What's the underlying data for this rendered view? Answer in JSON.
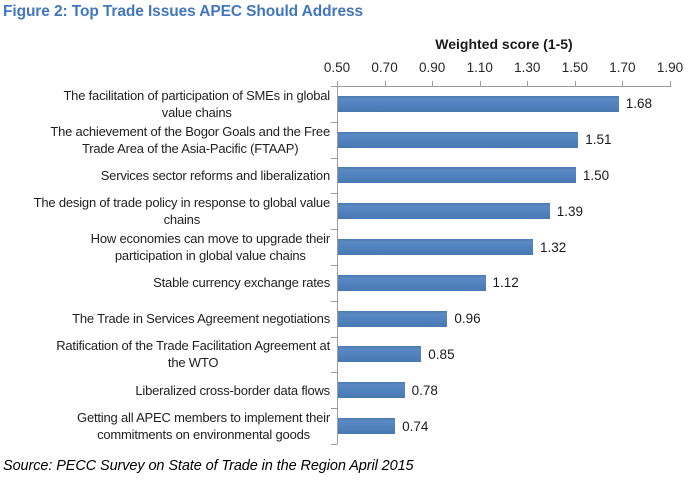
{
  "title": "Figure 2: Top Trade Issues APEC Should Address",
  "source": "Source: PECC Survey on State of Trade in the Region April 2015",
  "colors": {
    "title_blue": "#4277be",
    "bar_blue": "#4f81bd",
    "axis_gray": "#9b9b9b",
    "text": "#1a1a1a"
  },
  "chart_data": {
    "type": "bar",
    "orientation": "horizontal",
    "axis_title": "Weighted score (1-5)",
    "xlabel": "Weighted score (1-5)",
    "ylabel": "",
    "xlim": [
      0.5,
      1.9
    ],
    "xtick_labels": [
      "0.50",
      "0.70",
      "0.90",
      "1.10",
      "1.30",
      "1.50",
      "1.70",
      "1.90"
    ],
    "grid": false,
    "legend": false,
    "value_axis_position": "top",
    "categories": [
      "The facilitation of participation of SMEs in global value chains",
      "The achievement of the Bogor Goals and the Free Trade Area of the Asia-Pacific (FTAAP)",
      "Services sector reforms and liberalization",
      "The design of trade policy in response to global value chains",
      "How economies can move to upgrade their participation in global value chains",
      "Stable currency exchange rates",
      "The Trade in Services Agreement negotiations",
      "Ratification of  the Trade Facilitation Agreement at the WTO",
      "Liberalized cross-border data flows",
      "Getting all APEC members to implement their commitments on environmental goods"
    ],
    "category_lines": [
      [
        "The facilitation of participation of SMEs in global",
        "value chains"
      ],
      [
        "The achievement of the Bogor Goals and the Free",
        "Trade Area of the Asia-Pacific (FTAAP)"
      ],
      [
        "Services sector reforms and liberalization"
      ],
      [
        "The design of trade policy in response to global value",
        "chains"
      ],
      [
        "How economies can move to upgrade their",
        "participation in global value chains"
      ],
      [
        "Stable currency exchange rates"
      ],
      [
        "The Trade in Services Agreement negotiations"
      ],
      [
        "Ratification of  the Trade Facilitation Agreement at",
        "the WTO"
      ],
      [
        "Liberalized cross-border data flows"
      ],
      [
        "Getting all APEC members to implement their",
        "commitments on environmental goods"
      ]
    ],
    "values": [
      1.68,
      1.51,
      1.5,
      1.39,
      1.32,
      1.12,
      0.96,
      0.85,
      0.78,
      0.74
    ],
    "value_labels": [
      "1.68",
      "1.51",
      "1.50",
      "1.39",
      "1.32",
      "1.12",
      "0.96",
      "0.85",
      "0.78",
      "0.74"
    ]
  }
}
